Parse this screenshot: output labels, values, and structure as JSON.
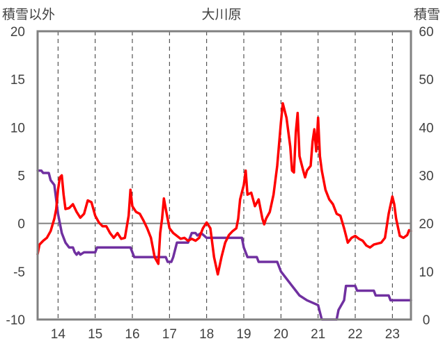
{
  "chart_data": {
    "type": "line",
    "title": "大川原",
    "y_left_label": "積雪以外",
    "y_right_label": "積雪",
    "x_ticks": [
      "14",
      "15",
      "16",
      "17",
      "18",
      "19",
      "20",
      "21",
      "22",
      "23"
    ],
    "x_range": [
      13.45,
      23.5
    ],
    "y_left_ticks": [
      "20",
      "15",
      "10",
      "5",
      "0",
      "-5",
      "-10"
    ],
    "y_left_range": [
      -10,
      20
    ],
    "y_right_ticks": [
      "60",
      "50",
      "40",
      "30",
      "20",
      "10",
      "0"
    ],
    "y_right_range": [
      0,
      60
    ],
    "grid": "dashed vertical lines at each x tick, solid horizontal line at 0",
    "colors": {
      "temperature": "#ff0000",
      "snow_depth": "#7030a0",
      "frame": "#808080"
    },
    "series": [
      {
        "axis": "left",
        "color": "#ff0000",
        "points": [
          [
            13.45,
            -3.2
          ],
          [
            13.5,
            -2.2
          ],
          [
            13.6,
            -1.8
          ],
          [
            13.7,
            -1.5
          ],
          [
            13.8,
            -0.8
          ],
          [
            13.9,
            0.5
          ],
          [
            13.95,
            1.5
          ],
          [
            14.0,
            3.5
          ],
          [
            14.05,
            4.8
          ],
          [
            14.1,
            5.0
          ],
          [
            14.15,
            3.0
          ],
          [
            14.2,
            1.5
          ],
          [
            14.3,
            1.6
          ],
          [
            14.4,
            2.0
          ],
          [
            14.5,
            1.2
          ],
          [
            14.6,
            0.6
          ],
          [
            14.7,
            1.0
          ],
          [
            14.8,
            2.4
          ],
          [
            14.9,
            2.2
          ],
          [
            15.0,
            0.8
          ],
          [
            15.1,
            0.1
          ],
          [
            15.2,
            -0.3
          ],
          [
            15.3,
            -0.3
          ],
          [
            15.4,
            -1.0
          ],
          [
            15.5,
            -1.5
          ],
          [
            15.6,
            -1.0
          ],
          [
            15.7,
            -1.6
          ],
          [
            15.8,
            -1.5
          ],
          [
            15.9,
            0.8
          ],
          [
            15.95,
            3.5
          ],
          [
            16.0,
            1.8
          ],
          [
            16.1,
            1.2
          ],
          [
            16.2,
            1.0
          ],
          [
            16.3,
            0.3
          ],
          [
            16.4,
            -0.5
          ],
          [
            16.5,
            -1.5
          ],
          [
            16.6,
            -3.5
          ],
          [
            16.7,
            -4.2
          ],
          [
            16.75,
            -1.0
          ],
          [
            16.8,
            0.5
          ],
          [
            16.85,
            2.6
          ],
          [
            16.9,
            1.5
          ],
          [
            17.0,
            -0.5
          ],
          [
            17.1,
            -1.0
          ],
          [
            17.2,
            -1.3
          ],
          [
            17.3,
            -1.6
          ],
          [
            17.4,
            -1.5
          ],
          [
            17.5,
            -1.8
          ],
          [
            17.6,
            -1.6
          ],
          [
            17.7,
            -1.8
          ],
          [
            17.8,
            -1.5
          ],
          [
            17.9,
            -0.5
          ],
          [
            18.0,
            0.1
          ],
          [
            18.1,
            -0.5
          ],
          [
            18.2,
            -3.5
          ],
          [
            18.3,
            -5.3
          ],
          [
            18.4,
            -3.5
          ],
          [
            18.5,
            -2.0
          ],
          [
            18.6,
            -1.2
          ],
          [
            18.7,
            -0.8
          ],
          [
            18.8,
            -0.5
          ],
          [
            18.85,
            0.5
          ],
          [
            18.9,
            2.5
          ],
          [
            19.0,
            4.0
          ],
          [
            19.05,
            5.5
          ],
          [
            19.1,
            3.0
          ],
          [
            19.2,
            3.2
          ],
          [
            19.3,
            1.8
          ],
          [
            19.4,
            2.5
          ],
          [
            19.5,
            0.5
          ],
          [
            19.55,
            -0.1
          ],
          [
            19.6,
            0.5
          ],
          [
            19.7,
            1.2
          ],
          [
            19.8,
            3.0
          ],
          [
            19.9,
            6.0
          ],
          [
            20.0,
            10.5
          ],
          [
            20.05,
            12.5
          ],
          [
            20.15,
            11.0
          ],
          [
            20.25,
            8.0
          ],
          [
            20.3,
            5.5
          ],
          [
            20.35,
            5.3
          ],
          [
            20.4,
            9.5
          ],
          [
            20.45,
            11.5
          ],
          [
            20.5,
            7.0
          ],
          [
            20.6,
            5.5
          ],
          [
            20.65,
            4.8
          ],
          [
            20.7,
            5.5
          ],
          [
            20.8,
            6.0
          ],
          [
            20.85,
            8.5
          ],
          [
            20.9,
            9.8
          ],
          [
            20.95,
            7.5
          ],
          [
            21.0,
            11.0
          ],
          [
            21.05,
            7.0
          ],
          [
            21.1,
            5.5
          ],
          [
            21.2,
            3.5
          ],
          [
            21.3,
            2.5
          ],
          [
            21.4,
            2.0
          ],
          [
            21.5,
            1.0
          ],
          [
            21.6,
            0.8
          ],
          [
            21.7,
            -0.5
          ],
          [
            21.8,
            -2.0
          ],
          [
            21.9,
            -1.5
          ],
          [
            22.0,
            -1.3
          ],
          [
            22.1,
            -1.6
          ],
          [
            22.2,
            -1.8
          ],
          [
            22.3,
            -2.3
          ],
          [
            22.4,
            -2.5
          ],
          [
            22.5,
            -2.2
          ],
          [
            22.6,
            -2.1
          ],
          [
            22.7,
            -2.0
          ],
          [
            22.8,
            -1.5
          ],
          [
            22.9,
            1.0
          ],
          [
            23.0,
            2.8
          ],
          [
            23.05,
            2.0
          ],
          [
            23.1,
            0.5
          ],
          [
            23.2,
            -1.3
          ],
          [
            23.3,
            -1.5
          ],
          [
            23.4,
            -1.2
          ],
          [
            23.45,
            -0.7
          ],
          [
            23.5,
            -0.8
          ]
        ]
      },
      {
        "axis": "right",
        "color": "#7030a0",
        "points": [
          [
            13.45,
            31
          ],
          [
            13.55,
            31
          ],
          [
            13.6,
            30.5
          ],
          [
            13.75,
            30.5
          ],
          [
            13.8,
            29
          ],
          [
            13.9,
            28
          ],
          [
            14.0,
            22
          ],
          [
            14.1,
            18
          ],
          [
            14.2,
            16
          ],
          [
            14.3,
            15
          ],
          [
            14.4,
            15
          ],
          [
            14.45,
            14
          ],
          [
            14.5,
            13.5
          ],
          [
            14.55,
            14
          ],
          [
            14.6,
            13.5
          ],
          [
            14.7,
            14
          ],
          [
            15.0,
            14
          ],
          [
            15.05,
            15
          ],
          [
            15.95,
            15
          ],
          [
            16.0,
            14
          ],
          [
            16.05,
            13
          ],
          [
            16.9,
            13
          ],
          [
            16.95,
            12
          ],
          [
            17.05,
            12
          ],
          [
            17.1,
            13
          ],
          [
            17.2,
            16
          ],
          [
            17.5,
            16
          ],
          [
            17.6,
            18
          ],
          [
            17.7,
            18
          ],
          [
            17.75,
            17.5
          ],
          [
            17.85,
            18
          ],
          [
            18.0,
            17
          ],
          [
            18.95,
            17
          ],
          [
            19.0,
            15
          ],
          [
            19.1,
            13
          ],
          [
            19.35,
            13
          ],
          [
            19.4,
            12
          ],
          [
            19.9,
            12
          ],
          [
            20.0,
            10
          ],
          [
            20.1,
            9
          ],
          [
            20.2,
            8
          ],
          [
            20.3,
            7
          ],
          [
            20.4,
            6
          ],
          [
            20.5,
            5
          ],
          [
            20.7,
            4
          ],
          [
            21.0,
            3
          ],
          [
            21.1,
            0
          ],
          [
            21.2,
            0
          ],
          [
            21.5,
            0
          ],
          [
            21.55,
            2
          ],
          [
            21.7,
            4
          ],
          [
            21.75,
            7
          ],
          [
            22.0,
            7
          ],
          [
            22.05,
            6
          ],
          [
            22.5,
            6
          ],
          [
            22.55,
            5
          ],
          [
            22.9,
            5
          ],
          [
            22.95,
            4
          ],
          [
            23.5,
            4
          ]
        ]
      }
    ]
  }
}
